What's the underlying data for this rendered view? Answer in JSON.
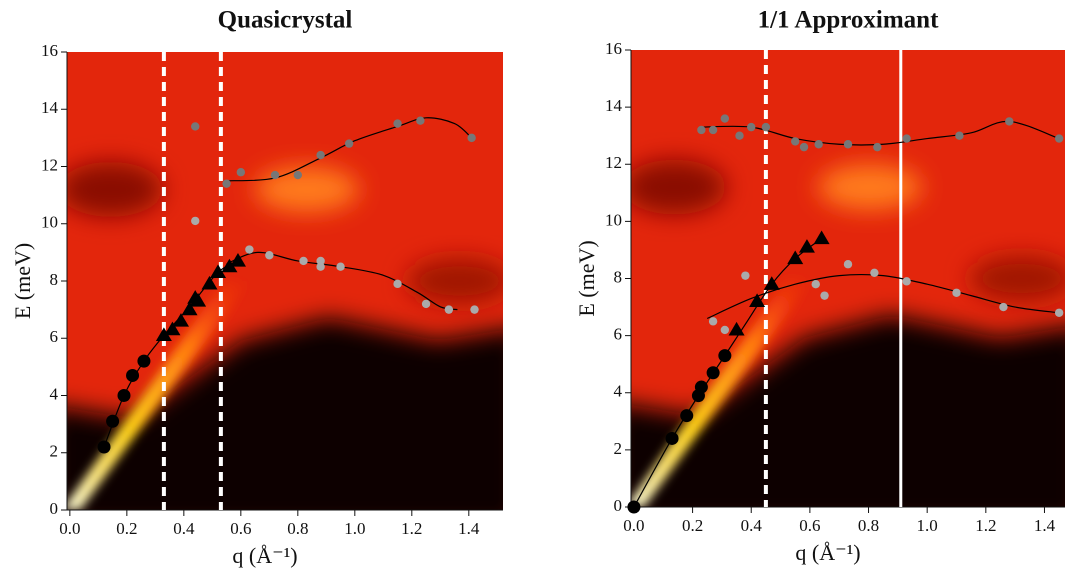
{
  "chart_data": [
    {
      "type": "scatter",
      "title": "Quasicrystal",
      "xlabel": "q (Å⁻¹)",
      "ylabel": "E (meV)",
      "xlim": [
        -0.01,
        1.52
      ],
      "ylim": [
        0,
        16
      ],
      "xticks": [
        {
          "value": 0,
          "label": "0.0"
        },
        0.2,
        0.4,
        0.6,
        0.8,
        {
          "value": 1,
          "label": "1.0"
        },
        1.2,
        1.4
      ],
      "yticks": [
        0,
        2,
        4,
        6,
        8,
        10,
        12,
        14,
        16
      ],
      "vlines": [
        {
          "x": 0.33,
          "style": "dashed"
        },
        {
          "x": 0.53,
          "style": "dashed"
        }
      ],
      "series": [
        {
          "marker": "line",
          "color": "#000000",
          "x": [
            0.12,
            0.19,
            0.26,
            0.33,
            0.42,
            0.52,
            0.59
          ],
          "values": [
            2.2,
            4.0,
            5.2,
            6.1,
            7.1,
            8.3,
            8.7
          ]
        },
        {
          "marker": "line",
          "color": "#000000",
          "x": [
            0.55,
            0.72,
            0.88,
            1.0,
            1.15,
            1.25,
            1.35,
            1.41
          ],
          "values": [
            11.5,
            11.6,
            12.3,
            12.9,
            13.4,
            13.7,
            13.5,
            13.0
          ]
        },
        {
          "marker": "line",
          "color": "#000000",
          "x": [
            0.55,
            0.66,
            0.8,
            0.95,
            1.1,
            1.22,
            1.3,
            1.36
          ],
          "values": [
            8.6,
            9.0,
            8.7,
            8.5,
            8.2,
            7.6,
            7.1,
            7.0
          ]
        },
        {
          "marker": "circle",
          "color": "#000000",
          "x": [
            0.12,
            0.15,
            0.19,
            0.22,
            0.26
          ],
          "values": [
            2.2,
            3.1,
            4.0,
            4.7,
            5.2
          ]
        },
        {
          "marker": "triangle",
          "color": "#000000",
          "x": [
            0.33,
            0.36,
            0.39,
            0.42,
            0.44,
            0.45,
            0.49,
            0.52,
            0.56,
            0.59
          ],
          "values": [
            6.1,
            6.3,
            6.6,
            7.0,
            7.4,
            7.3,
            7.9,
            8.3,
            8.5,
            8.7
          ]
        },
        {
          "marker": "circle",
          "color": "#777777",
          "x": [
            0.44,
            0.55,
            0.6,
            0.72,
            0.8,
            0.88,
            0.98,
            1.15,
            1.23,
            1.41
          ],
          "values": [
            13.4,
            11.4,
            11.8,
            11.7,
            11.7,
            12.4,
            12.8,
            13.5,
            13.6,
            13.0
          ]
        },
        {
          "marker": "circle",
          "color": "#aaaaaa",
          "x": [
            0.44,
            0.63,
            0.7,
            0.82,
            0.88,
            0.88,
            0.95,
            1.15,
            1.25,
            1.33,
            1.42
          ],
          "values": [
            10.1,
            9.1,
            8.9,
            8.7,
            8.7,
            8.5,
            8.5,
            7.9,
            7.2,
            7.0,
            7.0
          ]
        }
      ]
    },
    {
      "type": "scatter",
      "title": "1/1 Approximant",
      "xlabel": "q (Å⁻¹)",
      "ylabel": "E (meV)",
      "xlim": [
        -0.01,
        1.47
      ],
      "ylim": [
        0,
        16
      ],
      "xticks": [
        {
          "value": 0,
          "label": "0.0"
        },
        0.2,
        0.4,
        0.6,
        0.8,
        {
          "value": 1,
          "label": "1.0"
        },
        1.2,
        1.4
      ],
      "yticks": [
        0,
        2,
        4,
        6,
        8,
        10,
        12,
        14,
        16
      ],
      "vlines": [
        {
          "x": 0.45,
          "style": "dashed"
        },
        {
          "x": 0.91,
          "style": "solid"
        }
      ],
      "series": [
        {
          "marker": "line",
          "color": "#000000",
          "x": [
            0.0,
            0.13,
            0.22,
            0.31,
            0.38,
            0.47,
            0.55,
            0.64
          ],
          "values": [
            0.0,
            2.4,
            3.9,
            5.3,
            6.4,
            7.8,
            8.7,
            9.4
          ]
        },
        {
          "marker": "line",
          "color": "#000000",
          "x": [
            0.23,
            0.4,
            0.55,
            0.7,
            0.85,
            1.0,
            1.15,
            1.28,
            1.45
          ],
          "values": [
            13.3,
            13.3,
            12.9,
            12.7,
            12.7,
            12.9,
            13.1,
            13.5,
            12.9
          ]
        },
        {
          "marker": "line",
          "color": "#000000",
          "x": [
            0.25,
            0.4,
            0.55,
            0.7,
            0.85,
            1.0,
            1.15,
            1.3,
            1.45
          ],
          "values": [
            6.6,
            7.3,
            7.8,
            8.1,
            8.1,
            7.8,
            7.4,
            7.0,
            6.8
          ]
        },
        {
          "marker": "circle",
          "color": "#000000",
          "x": [
            0.0,
            0.13,
            0.18,
            0.22,
            0.23,
            0.27,
            0.31
          ],
          "values": [
            0.0,
            2.4,
            3.2,
            3.9,
            4.2,
            4.7,
            5.3
          ]
        },
        {
          "marker": "triangle",
          "color": "#000000",
          "x": [
            0.35,
            0.42,
            0.47,
            0.55,
            0.59,
            0.64
          ],
          "values": [
            6.2,
            7.2,
            7.8,
            8.7,
            9.1,
            9.4
          ]
        },
        {
          "marker": "circle",
          "color": "#777777",
          "x": [
            0.23,
            0.27,
            0.31,
            0.36,
            0.4,
            0.45,
            0.55,
            0.58,
            0.63,
            0.73,
            0.83,
            0.93,
            1.11,
            1.28,
            1.45
          ],
          "values": [
            13.2,
            13.2,
            13.6,
            13.0,
            13.3,
            13.3,
            12.8,
            12.6,
            12.7,
            12.7,
            12.6,
            12.9,
            13.0,
            13.5,
            12.9
          ]
        },
        {
          "marker": "circle",
          "color": "#aaaaaa",
          "x": [
            0.27,
            0.31,
            0.38,
            0.62,
            0.65,
            0.73,
            0.82,
            0.93,
            1.1,
            1.26,
            1.45
          ],
          "values": [
            6.5,
            6.2,
            8.1,
            7.8,
            7.4,
            8.5,
            8.2,
            7.9,
            7.5,
            7.0,
            6.8
          ]
        }
      ]
    }
  ]
}
